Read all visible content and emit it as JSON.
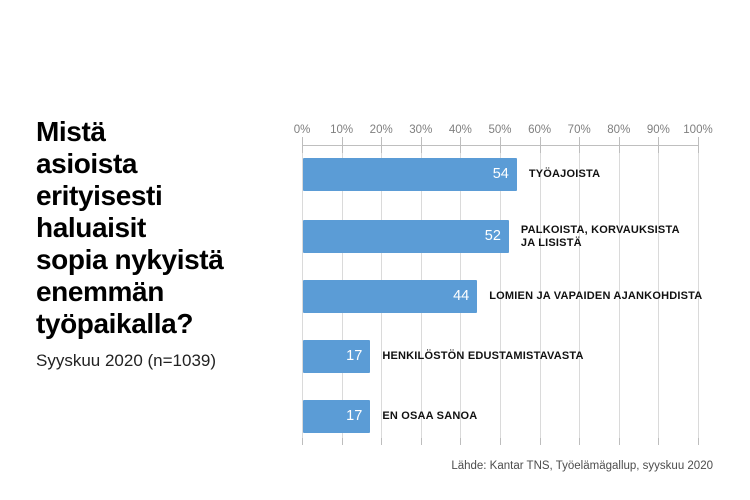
{
  "title": {
    "lines": [
      "Mistä",
      "asioista",
      "erityisesti",
      "haluaisit",
      "sopia nykyistä",
      "enemmän",
      "työpaikalla?"
    ],
    "subtitle": "Syyskuu 2020 (n=1039)"
  },
  "source": "Lähde: Kantar TNS, Työelämägallup, syyskuu 2020",
  "chart_data": {
    "type": "bar",
    "orientation": "horizontal",
    "title": "Mistä asioista erityisesti haluaisit sopia nykyistä enemmän työpaikalla?",
    "subtitle": "Syyskuu 2020 (n=1039)",
    "categories": [
      "Työajoista",
      "Palkoista, korvauksista ja lisistä",
      "Lomien ja vapaiden ajankohdista",
      "Henkilöstön edustamistavasta",
      "En osaa sanoa"
    ],
    "values": [
      54,
      52,
      44,
      17,
      17
    ],
    "unit": "%",
    "xlim": [
      0,
      100
    ],
    "x_ticks": [
      "0%",
      "10%",
      "20%",
      "30%",
      "40%",
      "50%",
      "60%",
      "70%",
      "80%",
      "90%",
      "100%"
    ],
    "grid": true,
    "legend": false,
    "bar_color": "#5B9CD6",
    "value_label_color": "#ffffff",
    "bars": [
      {
        "value": 54,
        "label_lines": [
          "TYÖAJOISTA"
        ]
      },
      {
        "value": 52,
        "label_lines": [
          "PALKOISTA, KORVAUKSISTA",
          "JA LISISTÄ"
        ]
      },
      {
        "value": 44,
        "label_lines": [
          "LOMIEN JA VAPAIDEN AJANKOHDISTA"
        ]
      },
      {
        "value": 17,
        "label_lines": [
          "HENKILÖSTÖN EDUSTAMISTAVASTA"
        ]
      },
      {
        "value": 17,
        "label_lines": [
          "EN OSAA SANOA"
        ]
      }
    ]
  }
}
